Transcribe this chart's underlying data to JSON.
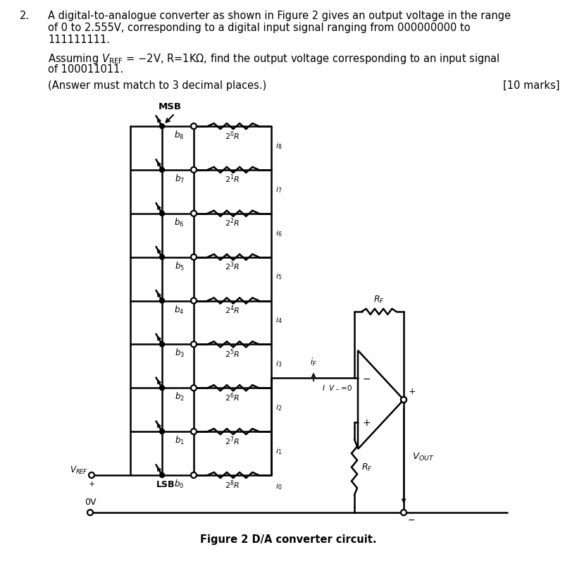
{
  "title_number": "2.",
  "p1_line1": "A digital-to-analogue converter as shown in Figure 2 gives an output voltage in the range",
  "p1_line2": "of 0 to 2.555V, corresponding to a digital input signal ranging from 000000000 to",
  "p1_line3": "111111111.",
  "p2_line1": "Assuming V",
  "p2_ref": "REF",
  "p2_line1b": " = −2V, R=1KΩ, find the output voltage corresponding to an input signal",
  "p2_line2": "of 100011011.",
  "p3": "(Answer must match to 3 decimal places.)",
  "marks": "[10 marks]",
  "figure_caption": "Figure 2 D/A converter circuit.",
  "background": "#ffffff",
  "lw": 1.8,
  "res_exps": [
    0,
    1,
    2,
    3,
    4,
    5,
    6,
    7,
    8
  ],
  "curr_nums": [
    8,
    7,
    6,
    5,
    4,
    3,
    2,
    1,
    0
  ],
  "bit_nums": [
    8,
    7,
    6,
    5,
    4,
    3,
    2,
    1,
    0
  ]
}
